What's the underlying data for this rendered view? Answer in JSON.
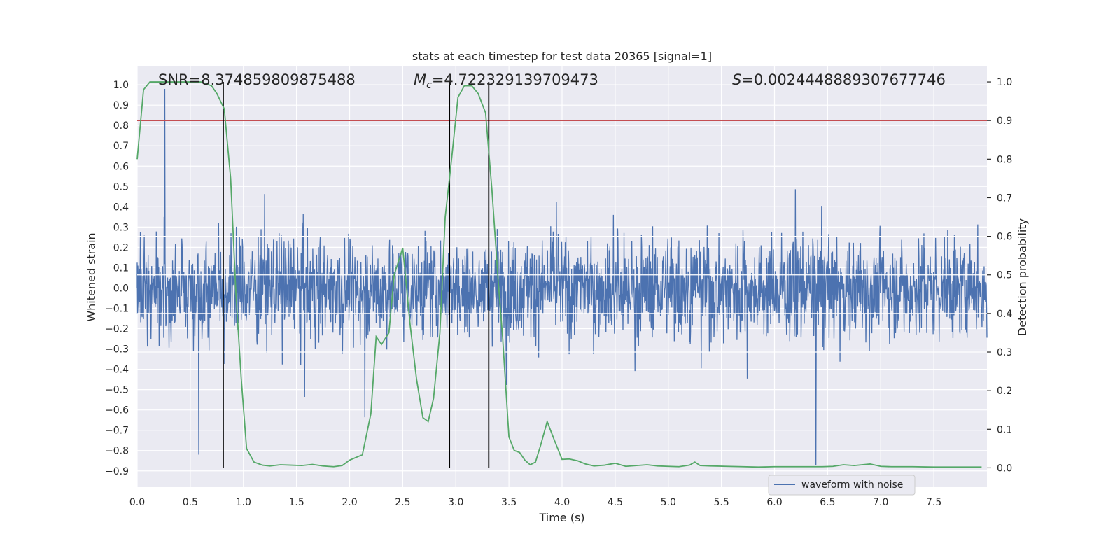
{
  "chart_data": {
    "type": "line",
    "title": "stats at each timestep for test data 20365 [signal=1]",
    "xlabel": "Time (s)",
    "ylabel_left": "Whitened strain",
    "ylabel_right": "Detection probability",
    "xlim": [
      0.0,
      8.0
    ],
    "ylim_left": [
      -0.98,
      1.09
    ],
    "ylim_right": [
      -0.05,
      1.04
    ],
    "x_ticks": [
      "0.0",
      "0.5",
      "1.0",
      "1.5",
      "2.0",
      "2.5",
      "3.0",
      "3.5",
      "4.0",
      "4.5",
      "5.0",
      "5.5",
      "6.0",
      "6.5",
      "7.0",
      "7.5"
    ],
    "y_ticks_left": [
      "-0.9",
      "-0.8",
      "-0.7",
      "-0.6",
      "-0.5",
      "-0.4",
      "-0.3",
      "-0.2",
      "-0.1",
      "0.0",
      "0.1",
      "0.2",
      "0.3",
      "0.4",
      "0.5",
      "0.6",
      "0.7",
      "0.8",
      "0.9",
      "1.0"
    ],
    "y_ticks_right": [
      "0.0",
      "0.1",
      "0.2",
      "0.3",
      "0.4",
      "0.5",
      "0.6",
      "0.7",
      "0.8",
      "0.9",
      "1.0"
    ],
    "annotations": {
      "snr": "SNR=8.374859809875488",
      "mc_symbol": "M",
      "mc_sub": "c",
      "mc_value": "=4.722329139709473",
      "s_symbol": "S",
      "s_value": "=0.0024448889307677746"
    },
    "threshold": {
      "axis": "right",
      "value": 0.9,
      "color": "#c44e52"
    },
    "vertical_lines": [
      0.81,
      2.94,
      3.31
    ],
    "legend": {
      "position": "lower-right",
      "entries": [
        {
          "label": "waveform with noise",
          "color": "#4c72b0"
        }
      ]
    },
    "series": [
      {
        "name": "waveform with noise",
        "axis": "left",
        "color": "#4c72b0",
        "style": "dense noise band, envelope approx -0.3 to 0.25 with spikes up to about 1.0 and down to about -0.87",
        "notable_spikes": [
          {
            "x": 0.26,
            "y": 1.0
          },
          {
            "x": 0.58,
            "y": -0.82
          },
          {
            "x": 6.39,
            "y": -0.87
          }
        ]
      },
      {
        "name": "detection probability",
        "axis": "right",
        "color": "#55a868",
        "x": [
          0.0,
          0.06,
          0.12,
          0.25,
          0.45,
          0.6,
          0.7,
          0.75,
          0.82,
          0.88,
          0.93,
          0.98,
          1.03,
          1.1,
          1.18,
          1.25,
          1.35,
          1.45,
          1.55,
          1.65,
          1.75,
          1.8,
          1.85,
          1.93,
          2.0,
          2.12,
          2.2,
          2.25,
          2.3,
          2.37,
          2.42,
          2.5,
          2.57,
          2.63,
          2.69,
          2.74,
          2.79,
          2.85,
          2.9,
          2.96,
          3.02,
          3.08,
          3.15,
          3.21,
          3.28,
          3.34,
          3.4,
          3.44,
          3.5,
          3.55,
          3.6,
          3.65,
          3.7,
          3.75,
          3.8,
          3.86,
          3.93,
          4.0,
          4.07,
          4.15,
          4.22,
          4.3,
          4.4,
          4.5,
          4.6,
          4.7,
          4.8,
          4.9,
          5.0,
          5.1,
          5.2,
          5.25,
          5.3,
          5.4,
          5.55,
          5.7,
          5.85,
          6.0,
          6.15,
          6.3,
          6.45,
          6.55,
          6.65,
          6.75,
          6.9,
          7.0,
          7.1,
          7.3,
          7.5,
          7.7,
          7.95
        ],
        "values": [
          0.8,
          0.98,
          1.0,
          1.0,
          1.0,
          1.0,
          0.99,
          0.97,
          0.93,
          0.75,
          0.45,
          0.23,
          0.05,
          0.015,
          0.007,
          0.005,
          0.008,
          0.007,
          0.006,
          0.009,
          0.005,
          0.004,
          0.003,
          0.006,
          0.02,
          0.034,
          0.14,
          0.34,
          0.32,
          0.35,
          0.5,
          0.57,
          0.37,
          0.23,
          0.13,
          0.12,
          0.18,
          0.35,
          0.65,
          0.8,
          0.96,
          0.99,
          0.99,
          0.97,
          0.92,
          0.72,
          0.48,
          0.34,
          0.08,
          0.045,
          0.04,
          0.02,
          0.008,
          0.015,
          0.06,
          0.12,
          0.07,
          0.022,
          0.023,
          0.018,
          0.01,
          0.005,
          0.007,
          0.012,
          0.004,
          0.006,
          0.008,
          0.005,
          0.004,
          0.003,
          0.007,
          0.015,
          0.006,
          0.005,
          0.004,
          0.003,
          0.002,
          0.003,
          0.003,
          0.003,
          0.003,
          0.004,
          0.008,
          0.006,
          0.01,
          0.004,
          0.003,
          0.003,
          0.002,
          0.002,
          0.002
        ]
      }
    ]
  }
}
